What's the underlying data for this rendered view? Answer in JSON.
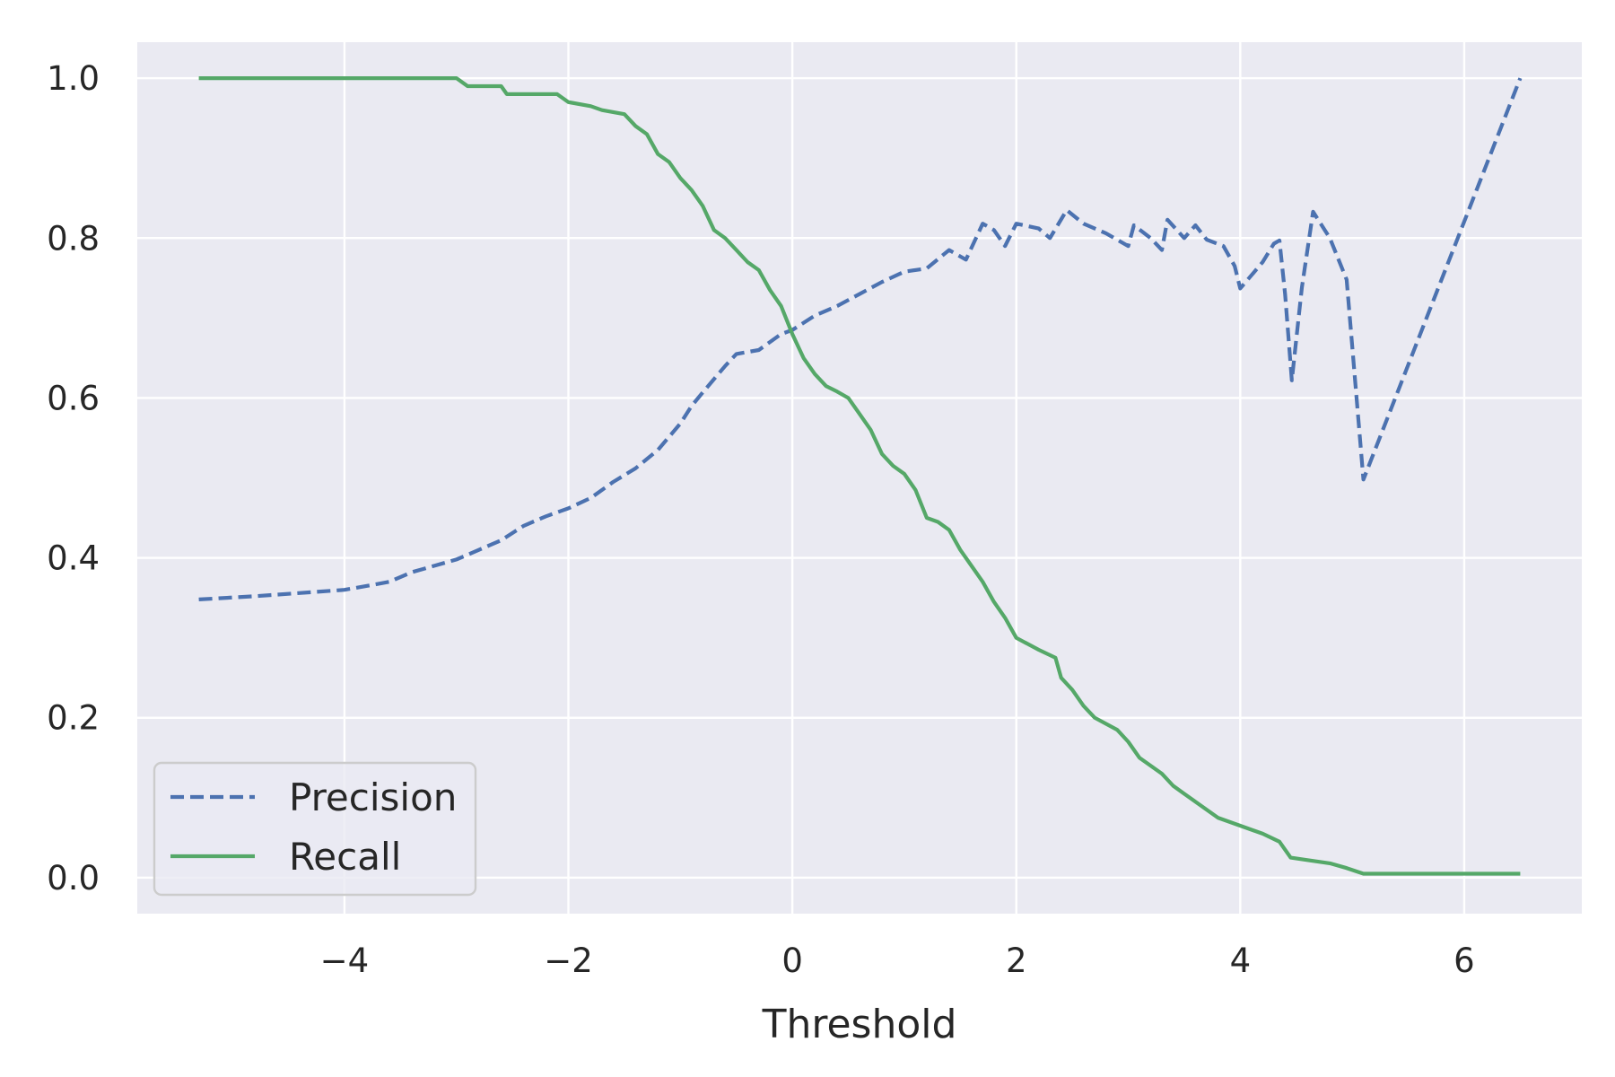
{
  "chart_data": {
    "type": "line",
    "title": "",
    "xlabel": "Threshold",
    "ylabel": "",
    "xlim": [
      -5.85,
      7.05
    ],
    "ylim": [
      -0.045,
      1.045
    ],
    "grid": true,
    "legend": {
      "position": "lower-left"
    },
    "x_ticks": [
      {
        "value": -4,
        "label": "−4"
      },
      {
        "value": -2,
        "label": "−2"
      },
      {
        "value": 0,
        "label": "0"
      },
      {
        "value": 2,
        "label": "2"
      },
      {
        "value": 4,
        "label": "4"
      },
      {
        "value": 6,
        "label": "6"
      }
    ],
    "y_ticks": [
      {
        "value": 0.0,
        "label": "0.0"
      },
      {
        "value": 0.2,
        "label": "0.2"
      },
      {
        "value": 0.4,
        "label": "0.4"
      },
      {
        "value": 0.6,
        "label": "0.6"
      },
      {
        "value": 0.8,
        "label": "0.8"
      },
      {
        "value": 1.0,
        "label": "1.0"
      }
    ],
    "colors": {
      "background": "#eaeaf2",
      "grid": "#ffffff",
      "precision": "#4c72b0",
      "recall": "#55a868"
    },
    "series": [
      {
        "name": "Precision",
        "style": "dashed",
        "color": "#4c72b0",
        "points": [
          [
            -5.3,
            0.348
          ],
          [
            -4.8,
            0.352
          ],
          [
            -4.3,
            0.357
          ],
          [
            -4.0,
            0.36
          ],
          [
            -3.8,
            0.365
          ],
          [
            -3.6,
            0.37
          ],
          [
            -3.4,
            0.382
          ],
          [
            -3.2,
            0.39
          ],
          [
            -3.0,
            0.398
          ],
          [
            -2.8,
            0.41
          ],
          [
            -2.6,
            0.422
          ],
          [
            -2.4,
            0.44
          ],
          [
            -2.2,
            0.452
          ],
          [
            -2.0,
            0.462
          ],
          [
            -1.8,
            0.475
          ],
          [
            -1.6,
            0.495
          ],
          [
            -1.4,
            0.512
          ],
          [
            -1.2,
            0.535
          ],
          [
            -1.0,
            0.568
          ],
          [
            -0.9,
            0.59
          ],
          [
            -0.8,
            0.607
          ],
          [
            -0.6,
            0.64
          ],
          [
            -0.5,
            0.655
          ],
          [
            -0.3,
            0.66
          ],
          [
            -0.1,
            0.68
          ],
          [
            0.0,
            0.685
          ],
          [
            0.2,
            0.703
          ],
          [
            0.4,
            0.715
          ],
          [
            0.6,
            0.73
          ],
          [
            0.8,
            0.745
          ],
          [
            1.0,
            0.758
          ],
          [
            1.2,
            0.762
          ],
          [
            1.4,
            0.785
          ],
          [
            1.55,
            0.773
          ],
          [
            1.7,
            0.818
          ],
          [
            1.8,
            0.81
          ],
          [
            1.9,
            0.79
          ],
          [
            2.0,
            0.818
          ],
          [
            2.2,
            0.812
          ],
          [
            2.3,
            0.8
          ],
          [
            2.45,
            0.835
          ],
          [
            2.6,
            0.818
          ],
          [
            2.8,
            0.806
          ],
          [
            3.0,
            0.79
          ],
          [
            3.05,
            0.816
          ],
          [
            3.2,
            0.8
          ],
          [
            3.3,
            0.785
          ],
          [
            3.35,
            0.823
          ],
          [
            3.5,
            0.8
          ],
          [
            3.6,
            0.816
          ],
          [
            3.7,
            0.798
          ],
          [
            3.85,
            0.79
          ],
          [
            3.95,
            0.765
          ],
          [
            4.0,
            0.737
          ],
          [
            4.2,
            0.77
          ],
          [
            4.3,
            0.793
          ],
          [
            4.35,
            0.797
          ],
          [
            4.4,
            0.73
          ],
          [
            4.46,
            0.622
          ],
          [
            4.55,
            0.738
          ],
          [
            4.65,
            0.833
          ],
          [
            4.8,
            0.8
          ],
          [
            4.95,
            0.748
          ],
          [
            5.1,
            0.498
          ],
          [
            6.5,
            1.0
          ]
        ]
      },
      {
        "name": "Recall",
        "style": "solid",
        "color": "#55a868",
        "points": [
          [
            -5.3,
            1.0
          ],
          [
            -3.0,
            1.0
          ],
          [
            -2.9,
            0.99
          ],
          [
            -2.6,
            0.99
          ],
          [
            -2.55,
            0.98
          ],
          [
            -2.1,
            0.98
          ],
          [
            -2.0,
            0.97
          ],
          [
            -1.8,
            0.965
          ],
          [
            -1.7,
            0.96
          ],
          [
            -1.5,
            0.955
          ],
          [
            -1.4,
            0.94
          ],
          [
            -1.3,
            0.93
          ],
          [
            -1.2,
            0.905
          ],
          [
            -1.1,
            0.895
          ],
          [
            -1.0,
            0.875
          ],
          [
            -0.9,
            0.86
          ],
          [
            -0.8,
            0.84
          ],
          [
            -0.7,
            0.81
          ],
          [
            -0.6,
            0.8
          ],
          [
            -0.5,
            0.785
          ],
          [
            -0.4,
            0.77
          ],
          [
            -0.3,
            0.76
          ],
          [
            -0.2,
            0.735
          ],
          [
            -0.1,
            0.715
          ],
          [
            0.0,
            0.68
          ],
          [
            0.1,
            0.65
          ],
          [
            0.2,
            0.63
          ],
          [
            0.3,
            0.615
          ],
          [
            0.4,
            0.608
          ],
          [
            0.5,
            0.6
          ],
          [
            0.6,
            0.58
          ],
          [
            0.7,
            0.56
          ],
          [
            0.8,
            0.53
          ],
          [
            0.9,
            0.515
          ],
          [
            1.0,
            0.505
          ],
          [
            1.1,
            0.485
          ],
          [
            1.2,
            0.45
          ],
          [
            1.3,
            0.445
          ],
          [
            1.4,
            0.435
          ],
          [
            1.5,
            0.41
          ],
          [
            1.6,
            0.39
          ],
          [
            1.7,
            0.37
          ],
          [
            1.8,
            0.345
          ],
          [
            1.9,
            0.325
          ],
          [
            2.0,
            0.3
          ],
          [
            2.2,
            0.285
          ],
          [
            2.35,
            0.275
          ],
          [
            2.4,
            0.25
          ],
          [
            2.5,
            0.235
          ],
          [
            2.6,
            0.215
          ],
          [
            2.7,
            0.2
          ],
          [
            2.9,
            0.185
          ],
          [
            3.0,
            0.17
          ],
          [
            3.1,
            0.15
          ],
          [
            3.2,
            0.14
          ],
          [
            3.3,
            0.13
          ],
          [
            3.4,
            0.115
          ],
          [
            3.5,
            0.105
          ],
          [
            3.6,
            0.095
          ],
          [
            3.7,
            0.085
          ],
          [
            3.8,
            0.075
          ],
          [
            4.0,
            0.065
          ],
          [
            4.2,
            0.055
          ],
          [
            4.35,
            0.045
          ],
          [
            4.45,
            0.025
          ],
          [
            4.6,
            0.022
          ],
          [
            4.8,
            0.018
          ],
          [
            4.95,
            0.012
          ],
          [
            5.1,
            0.005
          ],
          [
            6.5,
            0.005
          ]
        ]
      }
    ]
  }
}
